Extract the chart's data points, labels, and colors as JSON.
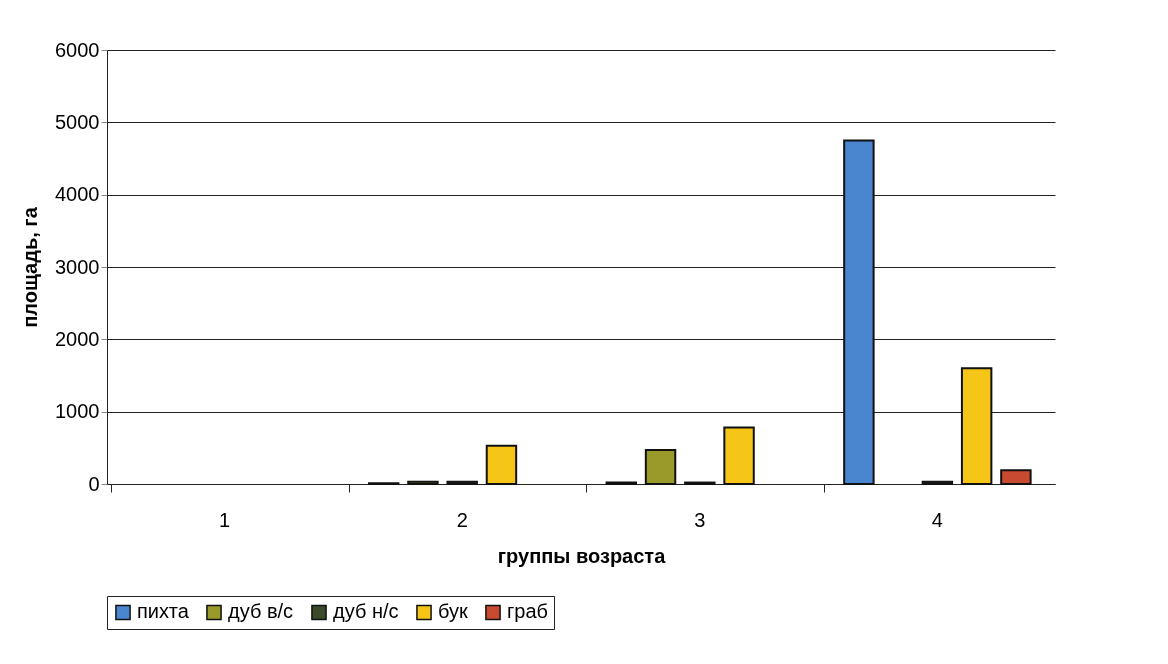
{
  "chart_data": {
    "type": "bar",
    "xlabel": "группы возраста",
    "ylabel": "площадь, га",
    "categories": [
      "1",
      "2",
      "3",
      "4"
    ],
    "series": [
      {
        "name": "пихта",
        "color": "#4a86d0",
        "values": [
          null,
          10,
          20,
          4750
        ]
      },
      {
        "name": "дуб в/с",
        "color": "#9a9a2a",
        "values": [
          null,
          30,
          470,
          null
        ]
      },
      {
        "name": "дуб н/с",
        "color": "#3a4a2a",
        "values": [
          null,
          30,
          20,
          30
        ]
      },
      {
        "name": "бук",
        "color": "#f5c518",
        "values": [
          null,
          530,
          780,
          1600
        ]
      },
      {
        "name": "граб",
        "color": "#c84a30",
        "values": [
          null,
          null,
          null,
          190
        ]
      }
    ],
    "ylim": [
      0,
      6000
    ],
    "yticks": [
      0,
      1000,
      2000,
      3000,
      4000,
      5000,
      6000
    ],
    "grid": "y",
    "legend": "bottom"
  }
}
